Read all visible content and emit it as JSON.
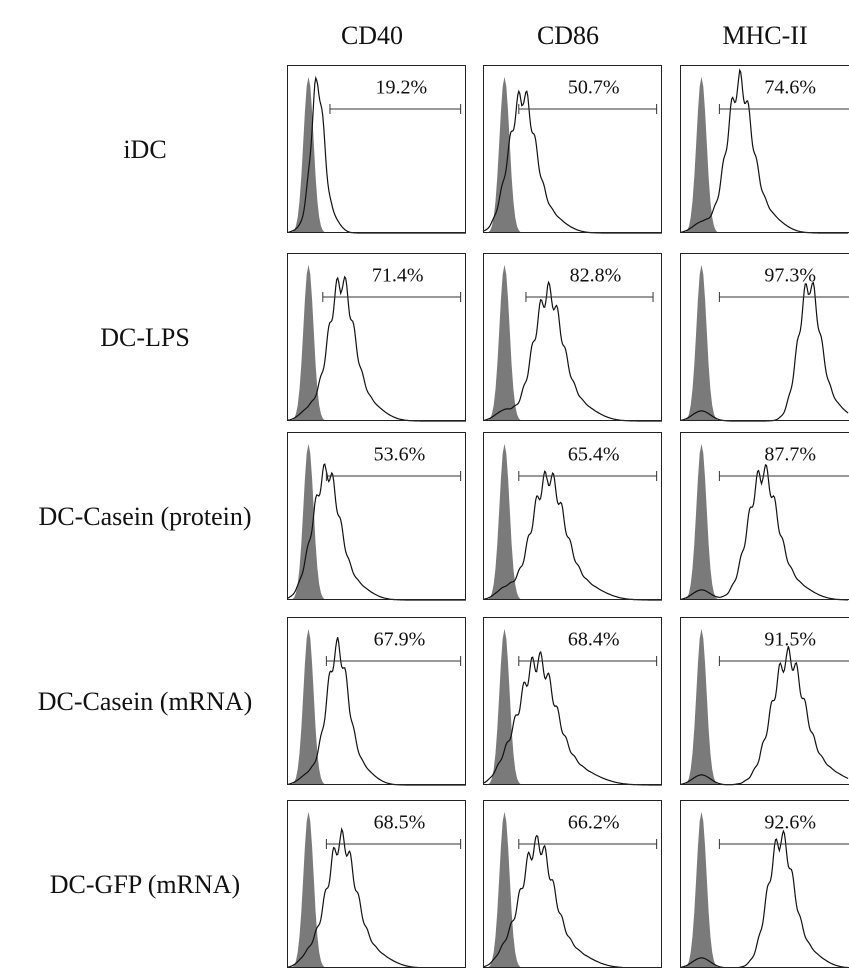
{
  "columns": [
    "CD40",
    "CD86",
    "MHC-II"
  ],
  "rows": [
    {
      "label": "iDC",
      "values": [
        "19.2%",
        "50.7%",
        "74.6%"
      ]
    },
    {
      "label": "DC-LPS",
      "values": [
        "71.4%",
        "82.8%",
        "97.3%"
      ]
    },
    {
      "label": "DC-Casein (protein)",
      "values": [
        "53.6%",
        "65.4%",
        "87.7%"
      ]
    },
    {
      "label": "DC-Casein (mRNA)",
      "values": [
        "67.9%",
        "68.4%",
        "91.5%"
      ]
    },
    {
      "label": "DC-GFP (mRNA)",
      "values": [
        "68.5%",
        "66.2%",
        "92.6%"
      ]
    }
  ]
}
